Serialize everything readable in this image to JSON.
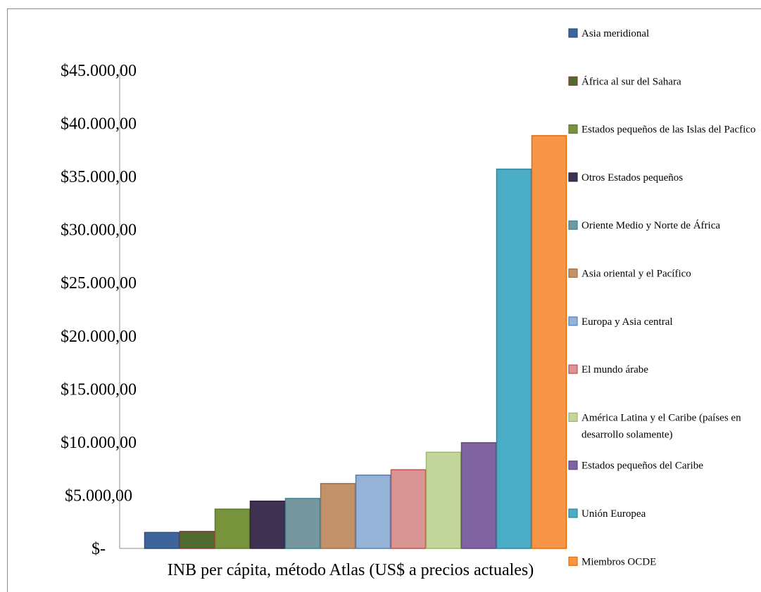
{
  "chart_data": {
    "type": "bar",
    "xlabel": "INB per cápita, método Atlas (US$ a precios actuales)",
    "ylabel": "",
    "ylim": [
      0,
      45000
    ],
    "yticks": [
      0,
      5000,
      10000,
      15000,
      20000,
      25000,
      30000,
      35000,
      40000,
      45000
    ],
    "ytick_labels": [
      "$-",
      "$5.000,00",
      "$10.000,00",
      "$15.000,00",
      "$20.000,00",
      "$25.000,00",
      "$30.000,00",
      "$35.000,00",
      "$40.000,00",
      "$45.000,00"
    ],
    "grid": false,
    "legend_position": "right",
    "series": [
      {
        "name": "Asia meridional",
        "value": 1500,
        "color": "#3e659b",
        "border": "#2d4d78"
      },
      {
        "name": "África al sur del Sahara",
        "value": 1600,
        "color": "#4f6b2f",
        "border": "#9b3131"
      },
      {
        "name": "Estados pequeños de las Islas del Pacfico",
        "value": 3700,
        "color": "#77933c",
        "border": "#5f7a2e"
      },
      {
        "name": "Otros Estados pequeños",
        "value": 4450,
        "color": "#3f3151",
        "border": "#2e2440"
      },
      {
        "name": "Oriente Medio y Norte de África",
        "value": 4700,
        "color": "#76979e",
        "border": "#31859c"
      },
      {
        "name": "Asia oriental y el Pacífico",
        "value": 6100,
        "color": "#c3916a",
        "border": "#9e6f49"
      },
      {
        "name": "Europa y Asia central",
        "value": 6900,
        "color": "#95b3d7",
        "border": "#4f81bd"
      },
      {
        "name": "El mundo árabe",
        "value": 7400,
        "color": "#d99594",
        "border": "#c0504d"
      },
      {
        "name": "América Latina y el Caribe (países en desarrollo solamente)",
        "value": 9050,
        "color": "#c3d69b",
        "border": "#9bbb59"
      },
      {
        "name": "Estados pequeños del Caribe",
        "value": 9950,
        "color": "#8064a2",
        "border": "#604a7b"
      },
      {
        "name": "Unión Europea",
        "value": 35700,
        "color": "#4bacc6",
        "border": "#31859c"
      },
      {
        "name": "Miembros OCDE",
        "value": 38850,
        "color": "#f79646",
        "border": "#e36c09"
      }
    ]
  }
}
